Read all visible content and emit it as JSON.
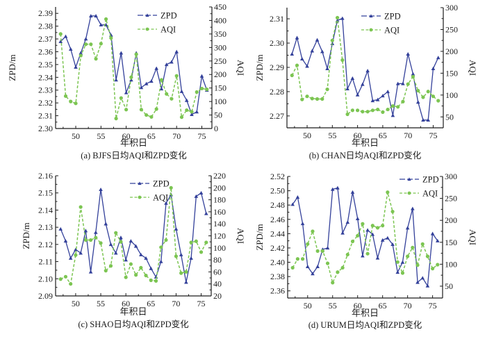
{
  "colors": {
    "zpd": "#33409a",
    "aqi": "#7cc552",
    "axis": "#1a1a1a"
  },
  "chart_data": [
    {
      "id": "a",
      "type": "line",
      "caption": "(a) BJFS日均AQI和ZPD变化",
      "xlabel": "年积日",
      "ylabel_left": "ZPD/m",
      "ylabel_right": "AQI",
      "xlim": [
        46,
        77
      ],
      "ylim_left": [
        2.3,
        2.395
      ],
      "ylim_right": [
        0,
        450
      ],
      "xticks": [
        50,
        55,
        60,
        65,
        70,
        75
      ],
      "yticks_left": [
        "2.30",
        "2.31",
        "2.32",
        "2.33",
        "2.34",
        "2.35",
        "2.36",
        "2.37",
        "2.38",
        "2.39"
      ],
      "yticks_left_values": [
        2.3,
        2.31,
        2.32,
        2.33,
        2.34,
        2.35,
        2.36,
        2.37,
        2.38,
        2.39
      ],
      "yticks_right": [
        "0",
        "50",
        "100",
        "150",
        "200",
        "250",
        "300",
        "350",
        "400",
        "450"
      ],
      "yticks_right_values": [
        0,
        50,
        100,
        150,
        200,
        250,
        300,
        350,
        400,
        450
      ],
      "legend": [
        "ZPD",
        "AQI"
      ],
      "legend_position": "top-right",
      "x": [
        47,
        48,
        49,
        50,
        51,
        52,
        53,
        54,
        55,
        56,
        57,
        58,
        59,
        60,
        61,
        62,
        63,
        64,
        65,
        66,
        67,
        68,
        69,
        70,
        71,
        72,
        73,
        74,
        75,
        76
      ],
      "series": [
        {
          "name": "ZPD",
          "axis": "left",
          "values": [
            2.368,
            2.372,
            2.362,
            2.348,
            2.359,
            2.37,
            2.388,
            2.388,
            2.381,
            2.381,
            2.373,
            2.338,
            2.359,
            2.328,
            2.338,
            2.359,
            2.332,
            2.335,
            2.337,
            2.347,
            2.331,
            2.35,
            2.352,
            2.36,
            2.329,
            2.322,
            2.311,
            2.313,
            2.341,
            2.33
          ]
        },
        {
          "name": "AQI",
          "axis": "right",
          "values": [
            350,
            120,
            100,
            93,
            270,
            312,
            312,
            258,
            314,
            405,
            335,
            37,
            113,
            70,
            190,
            275,
            70,
            50,
            43,
            72,
            180,
            128,
            110,
            195,
            42,
            68,
            62,
            135,
            148,
            145
          ]
        }
      ]
    },
    {
      "id": "b",
      "type": "line",
      "caption": "(b) CHAN日均AQI和ZPD变化",
      "xlabel": "年积日",
      "ylabel_left": "ZPD/m",
      "ylabel_right": "AQI",
      "xlim": [
        46,
        77
      ],
      "ylim_left": [
        2.2651,
        2.3146
      ],
      "ylim_right": [
        25,
        300
      ],
      "xticks": [
        50,
        55,
        60,
        65,
        70,
        75
      ],
      "yticks_left": [
        "2.27",
        "2.28",
        "2.29",
        "2.30",
        "2.31"
      ],
      "yticks_left_values": [
        2.27,
        2.28,
        2.29,
        2.3,
        2.31
      ],
      "yticks_right": [
        "50",
        "100",
        "150",
        "200",
        "250",
        "300"
      ],
      "yticks_right_values": [
        50,
        100,
        150,
        200,
        250,
        300
      ],
      "legend": [
        "ZPD",
        "AQI"
      ],
      "legend_position": "top-center",
      "x": [
        47,
        48,
        49,
        50,
        51,
        52,
        53,
        54,
        55,
        56,
        57,
        58,
        59,
        60,
        61,
        62,
        63,
        64,
        65,
        66,
        67,
        68,
        69,
        70,
        71,
        72,
        73,
        74,
        75,
        76
      ],
      "series": [
        {
          "name": "ZPD",
          "axis": "left",
          "values": [
            2.2955,
            2.3022,
            2.2935,
            2.2905,
            2.2968,
            2.3013,
            2.2965,
            2.2895,
            2.2998,
            2.3093,
            2.3102,
            2.2812,
            2.2855,
            2.2787,
            2.283,
            2.2886,
            2.2763,
            2.2767,
            2.2783,
            2.28,
            2.2702,
            2.2833,
            2.2833,
            2.2955,
            2.2873,
            2.2757,
            2.2683,
            2.2683,
            2.2895,
            2.294
          ]
        },
        {
          "name": "AQI",
          "axis": "right",
          "values": [
            145,
            168,
            90,
            97,
            92,
            91,
            91,
            113,
            225,
            277,
            180,
            56,
            65,
            65,
            62,
            62,
            65,
            67,
            61,
            67,
            75,
            73,
            85,
            125,
            142,
            110,
            95,
            108,
            97,
            87
          ]
        }
      ]
    },
    {
      "id": "c",
      "type": "line",
      "caption": "(c) SHAO日均AQI和ZPD变化",
      "xlabel": "年积日",
      "ylabel_left": "ZPD/m",
      "ylabel_right": "AQI",
      "xlim": [
        46,
        77
      ],
      "ylim_left": [
        2.09,
        2.16
      ],
      "ylim_right": [
        20,
        220
      ],
      "xticks": [
        50,
        55,
        60,
        65,
        70,
        75
      ],
      "yticks_left": [
        "2.09",
        "2.10",
        "2.11",
        "2.12",
        "2.13",
        "2.14",
        "2.15",
        "2.16"
      ],
      "yticks_left_values": [
        2.09,
        2.1,
        2.11,
        2.12,
        2.13,
        2.14,
        2.15,
        2.16
      ],
      "yticks_right": [
        "20",
        "40",
        "60",
        "80",
        "100",
        "120",
        "140",
        "160",
        "180",
        "200",
        "220"
      ],
      "yticks_right_values": [
        20,
        40,
        60,
        80,
        100,
        120,
        140,
        160,
        180,
        200,
        220
      ],
      "legend": [
        "ZPD",
        "AQI"
      ],
      "legend_position": "top-center",
      "x": [
        47,
        48,
        49,
        50,
        51,
        52,
        53,
        54,
        55,
        56,
        57,
        58,
        59,
        60,
        61,
        62,
        63,
        64,
        65,
        66,
        67,
        68,
        69,
        70,
        71,
        72,
        73,
        74,
        75,
        76
      ],
      "series": [
        {
          "name": "ZPD",
          "axis": "left",
          "values": [
            2.129,
            2.122,
            2.112,
            2.117,
            2.115,
            2.128,
            2.104,
            2.127,
            2.152,
            2.132,
            2.12,
            2.115,
            2.124,
            2.111,
            2.122,
            2.119,
            2.114,
            2.112,
            2.106,
            2.101,
            2.11,
            2.144,
            2.149,
            2.129,
            2.114,
            2.098,
            2.112,
            2.148,
            2.15,
            2.138
          ]
        },
        {
          "name": "AQI",
          "axis": "right",
          "values": [
            48,
            52,
            40,
            88,
            168,
            113,
            113,
            117,
            108,
            62,
            70,
            125,
            110,
            51,
            73,
            55,
            67,
            54,
            46,
            45,
            101,
            113,
            200,
            86,
            58,
            60,
            109,
            111,
            93,
            109
          ]
        }
      ]
    },
    {
      "id": "d",
      "type": "line",
      "caption": "(d) URUM日均AQI和ZPD变化",
      "xlabel": "年积日",
      "ylabel_left": "ZPD/m",
      "ylabel_right": "AQI",
      "xlim": [
        46,
        77
      ],
      "ylim_left": [
        2.35,
        2.52
      ],
      "ylim_right": [
        23,
        300
      ],
      "xticks": [
        50,
        55,
        60,
        65,
        70,
        75
      ],
      "yticks_left": [
        "2.36",
        "2.38",
        "2.40",
        "2.42",
        "2.44",
        "2.46",
        "2.48",
        "2.50",
        "2.52"
      ],
      "yticks_left_values": [
        2.36,
        2.38,
        2.4,
        2.42,
        2.44,
        2.46,
        2.48,
        2.5,
        2.52
      ],
      "yticks_right": [
        "50",
        "100",
        "150",
        "200",
        "250",
        "300"
      ],
      "yticks_right_values": [
        50,
        100,
        150,
        200,
        250,
        300
      ],
      "legend": [
        "ZPD",
        "AQI"
      ],
      "legend_position": "top-right",
      "x": [
        47,
        48,
        49,
        50,
        51,
        52,
        53,
        54,
        55,
        56,
        57,
        58,
        59,
        60,
        61,
        62,
        63,
        64,
        65,
        66,
        67,
        68,
        69,
        70,
        71,
        72,
        73,
        74,
        75,
        76
      ],
      "series": [
        {
          "name": "ZPD",
          "axis": "left",
          "values": [
            2.481,
            2.491,
            2.454,
            2.394,
            2.384,
            2.394,
            2.418,
            2.42,
            2.502,
            2.504,
            2.441,
            2.456,
            2.498,
            2.461,
            2.409,
            2.445,
            2.439,
            2.406,
            2.431,
            2.434,
            2.425,
            2.386,
            2.4,
            2.448,
            2.475,
            2.372,
            2.378,
            2.367,
            2.44,
            2.43
          ]
        },
        {
          "name": "AQI",
          "axis": "right",
          "values": [
            92,
            112,
            112,
            146,
            175,
            130,
            130,
            102,
            58,
            82,
            92,
            122,
            152,
            165,
            192,
            124,
            188,
            183,
            188,
            264,
            220,
            105,
            80,
            118,
            138,
            98,
            146,
            118,
            90,
            99
          ]
        }
      ]
    }
  ]
}
